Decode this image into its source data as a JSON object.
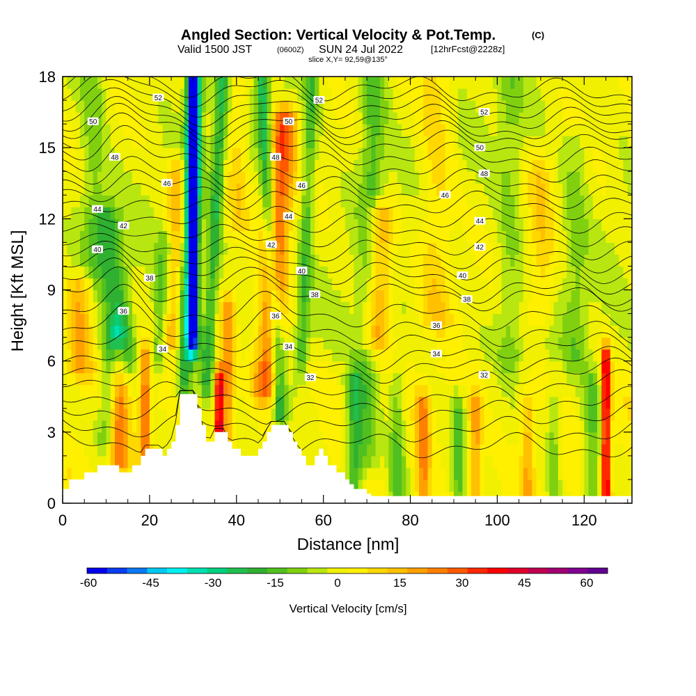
{
  "chart_data": {
    "type": "heatmap",
    "title": "Angled Section: Vertical Velocity & Pot.Temp.",
    "title_mark": "(C)",
    "subtitle_main": "Valid 1500 JST",
    "subtitle_zulu": "(0600Z)",
    "subtitle_date": "SUN 24 Jul 2022",
    "subtitle_fcst": "[12hrFcst@2228z]",
    "slice_label": "slice X,Y= 92,59@135°",
    "xlabel": "Distance [nm]",
    "ylabel": "Height [Kft MSL]",
    "xlim": [
      0,
      131
    ],
    "ylim": [
      0,
      18
    ],
    "x_ticks": [
      "0",
      "20",
      "40",
      "60",
      "80",
      "100",
      "120"
    ],
    "y_ticks": [
      "0",
      "3",
      "6",
      "9",
      "12",
      "15",
      "18"
    ],
    "colorbar": {
      "label": "Vertical Velocity [cm/s]",
      "ticks": [
        "-60",
        "-45",
        "-30",
        "-15",
        "0",
        "15",
        "30",
        "45",
        "60"
      ],
      "colors": [
        "#0000ee",
        "#0a3cf0",
        "#0a78f0",
        "#00c8f0",
        "#00f0f0",
        "#00e0b0",
        "#00d080",
        "#20c050",
        "#30b030",
        "#50c020",
        "#80d010",
        "#b8e610",
        "#f0f000",
        "#fff000",
        "#ffd800",
        "#ffc000",
        "#ffa000",
        "#ff8000",
        "#ff5a00",
        "#ff2800",
        "#ff0000",
        "#e0002a",
        "#c00050",
        "#a00070",
        "#800090",
        "#600090"
      ]
    },
    "theta_contours": [
      {
        "label": "32",
        "h": 5.3,
        "label_pos": [
          [
            57,
            5.3
          ],
          [
            97,
            5.4
          ]
        ]
      },
      {
        "label": "34",
        "h": 6.3,
        "label_pos": [
          [
            23,
            6.5
          ],
          [
            52,
            6.6
          ],
          [
            86,
            6.3
          ]
        ]
      },
      {
        "label": "36",
        "h": 7.4,
        "label_pos": [
          [
            14,
            8.1
          ],
          [
            49,
            7.9
          ],
          [
            86,
            7.5
          ]
        ]
      },
      {
        "label": "38",
        "h": 8.9,
        "label_pos": [
          [
            20,
            9.5
          ],
          [
            58,
            8.8
          ],
          [
            93,
            8.6
          ]
        ]
      },
      {
        "label": "40",
        "h": 9.9,
        "label_pos": [
          [
            8,
            10.7
          ],
          [
            55,
            9.8
          ],
          [
            92,
            9.6
          ]
        ]
      },
      {
        "label": "42",
        "h": 10.8,
        "label_pos": [
          [
            14,
            11.7
          ],
          [
            48,
            10.9
          ],
          [
            96,
            10.8
          ]
        ]
      },
      {
        "label": "44",
        "h": 11.9,
        "label_pos": [
          [
            8,
            12.4
          ],
          [
            52,
            12.1
          ],
          [
            96,
            11.9
          ]
        ]
      },
      {
        "label": "46",
        "h": 13.0,
        "label_pos": [
          [
            24,
            13.5
          ],
          [
            55,
            13.4
          ],
          [
            88,
            13.0
          ]
        ]
      },
      {
        "label": "48",
        "h": 13.9,
        "label_pos": [
          [
            12,
            14.6
          ],
          [
            49,
            14.6
          ],
          [
            97,
            13.9
          ]
        ]
      },
      {
        "label": "50",
        "h": 15.0,
        "label_pos": [
          [
            7,
            16.1
          ],
          [
            52,
            16.1
          ],
          [
            96,
            15.0
          ]
        ]
      },
      {
        "label": "52",
        "h": 16.6,
        "label_pos": [
          [
            22,
            17.1
          ],
          [
            59,
            17.0
          ],
          [
            97,
            16.5
          ]
        ]
      }
    ],
    "terrain_profile": [
      [
        0,
        0.6
      ],
      [
        1.5,
        1.0
      ],
      [
        5,
        1.3
      ],
      [
        8,
        1.6
      ],
      [
        12,
        1.6
      ],
      [
        13,
        1.3
      ],
      [
        15,
        1.3
      ],
      [
        16,
        1.6
      ],
      [
        18,
        2.0
      ],
      [
        19,
        2.3
      ],
      [
        22,
        2.3
      ],
      [
        23,
        2.0
      ],
      [
        24,
        2.3
      ],
      [
        25,
        2.6
      ],
      [
        26,
        3.3
      ],
      [
        27,
        4.6
      ],
      [
        30,
        4.6
      ],
      [
        31,
        4.0
      ],
      [
        32,
        3.3
      ],
      [
        33,
        2.6
      ],
      [
        34,
        2.6
      ],
      [
        35,
        3.0
      ],
      [
        37,
        3.0
      ],
      [
        38,
        2.6
      ],
      [
        39,
        2.3
      ],
      [
        40,
        2.3
      ],
      [
        41,
        2.0
      ],
      [
        44,
        2.0
      ],
      [
        45,
        2.3
      ],
      [
        46,
        2.6
      ],
      [
        47,
        3.0
      ],
      [
        48,
        3.3
      ],
      [
        51,
        3.3
      ],
      [
        52,
        3.0
      ],
      [
        53,
        2.6
      ],
      [
        54,
        2.3
      ],
      [
        55,
        2.0
      ],
      [
        56,
        1.6
      ],
      [
        57,
        1.6
      ],
      [
        58,
        2.0
      ],
      [
        59,
        2.3
      ],
      [
        60,
        2.0
      ],
      [
        61,
        1.6
      ],
      [
        63,
        1.3
      ],
      [
        65,
        1.0
      ],
      [
        66,
        0.8
      ],
      [
        67,
        0.6
      ],
      [
        70,
        0.4
      ],
      [
        71,
        0.3
      ],
      [
        131,
        0.3
      ]
    ]
  }
}
